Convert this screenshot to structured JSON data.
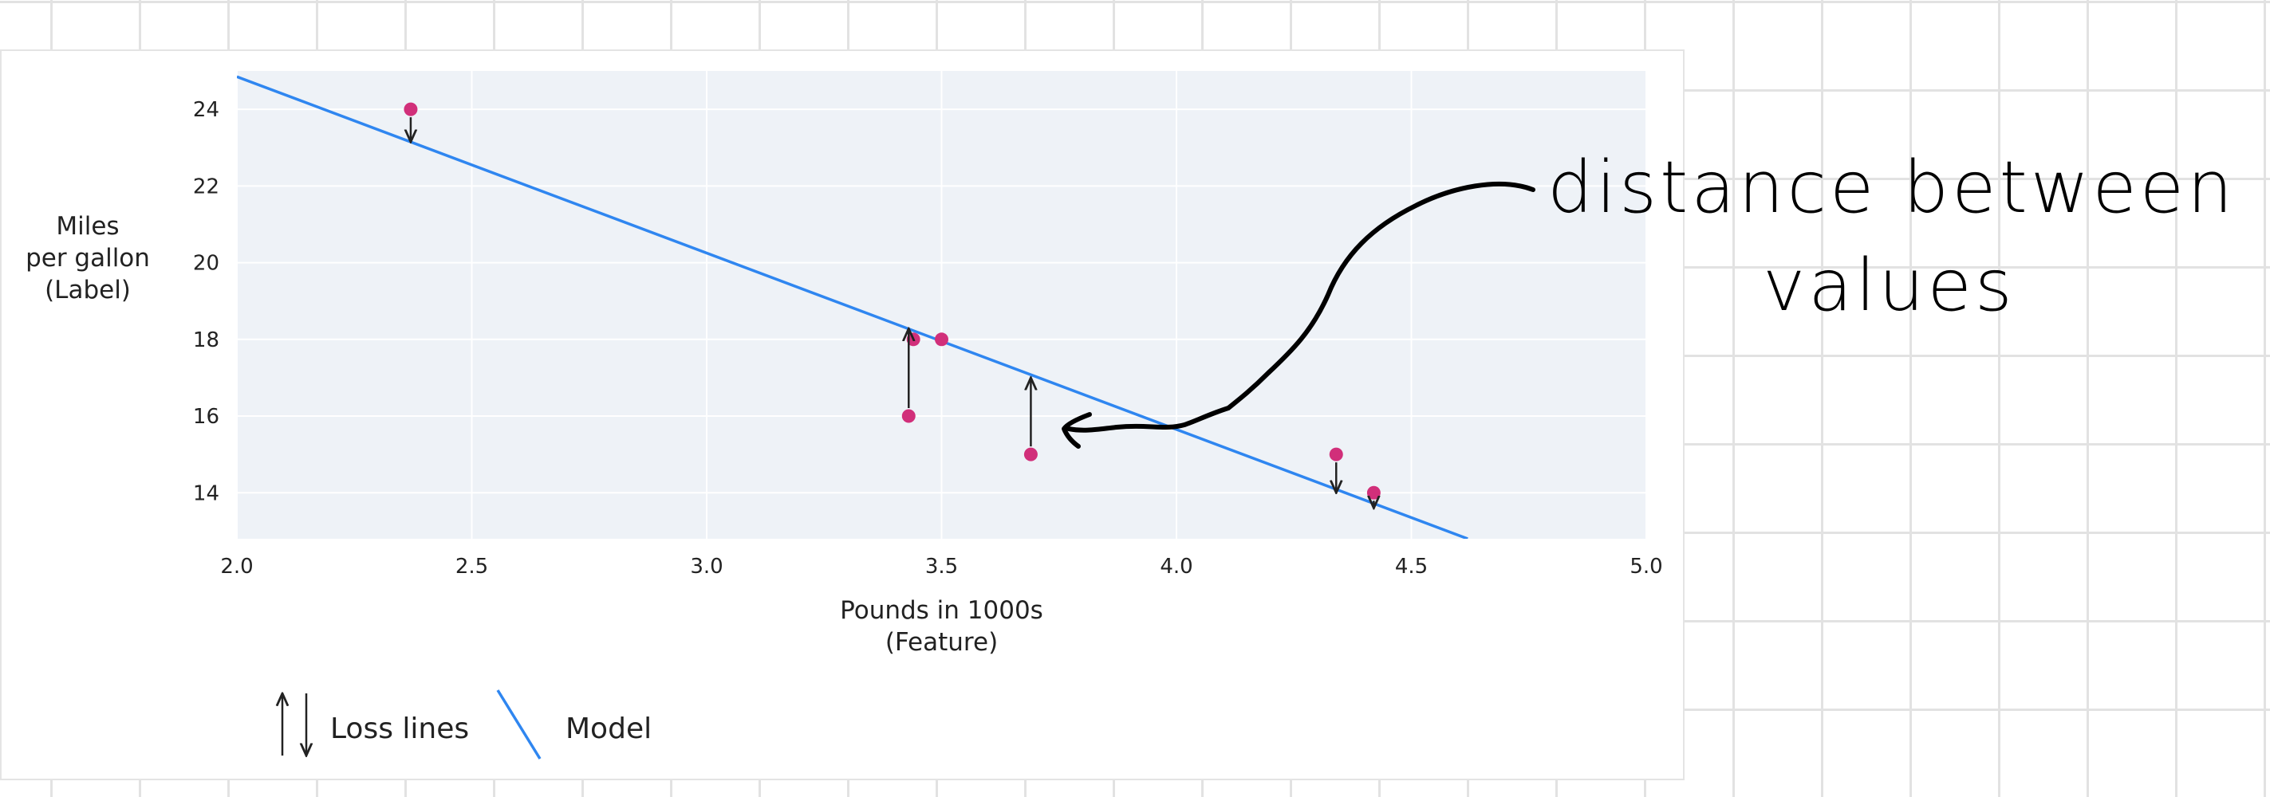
{
  "chart_data": {
    "type": "scatter",
    "title": "",
    "xlabel": "Pounds in 1000s\n(Feature)",
    "ylabel": "Miles\nper gallon\n(Label)",
    "xlim": [
      2.0,
      5.0
    ],
    "ylim": [
      12.8,
      25.0
    ],
    "xticks": [
      "2.0",
      "2.5",
      "3.0",
      "3.5",
      "4.0",
      "4.5",
      "5.0"
    ],
    "yticks": [
      "14",
      "16",
      "18",
      "20",
      "22",
      "24"
    ],
    "grid": true,
    "points": [
      {
        "x": 2.37,
        "y": 24
      },
      {
        "x": 3.43,
        "y": 16
      },
      {
        "x": 3.44,
        "y": 18
      },
      {
        "x": 3.5,
        "y": 18
      },
      {
        "x": 3.69,
        "y": 15
      },
      {
        "x": 4.34,
        "y": 15
      },
      {
        "x": 4.42,
        "y": 14
      }
    ],
    "model_line": {
      "x": [
        2.0,
        4.62
      ],
      "y": [
        24.85,
        12.8
      ]
    },
    "loss_lines": [
      {
        "x": 2.37,
        "from": 24,
        "to": 23.15
      },
      {
        "x": 3.43,
        "from": 16,
        "to": 18.28
      },
      {
        "x": 3.69,
        "from": 15,
        "to": 17.0
      },
      {
        "x": 4.34,
        "from": 15,
        "to": 14.0
      },
      {
        "x": 4.42,
        "from": 14,
        "to": 13.6
      }
    ],
    "legend": [
      {
        "label": "Loss lines",
        "symbol": "arrows"
      },
      {
        "label": "Model",
        "symbol": "line"
      }
    ],
    "legend_position": "bottom-left",
    "colors": {
      "point": "#d12f7a",
      "model": "#2f86f0",
      "loss": "#222222",
      "plot_bg": "#eef2f7",
      "grid": "#ffffff"
    }
  },
  "annotation": {
    "line1": "distance between",
    "line2": "values"
  }
}
